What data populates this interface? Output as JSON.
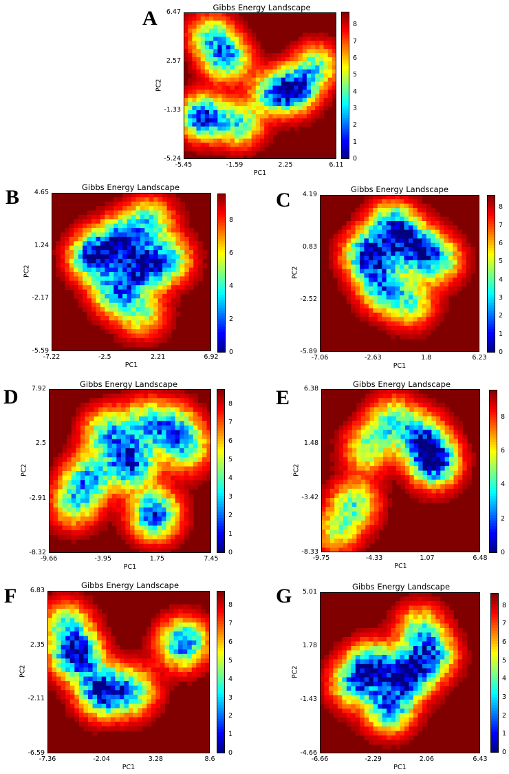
{
  "chart_data": [
    {
      "id": "A",
      "type": "heatmap",
      "title": "Gibbs Energy Landscape",
      "xlabel": "PC1",
      "ylabel": "PC2",
      "xticks": [
        "-5.45",
        "-1.59",
        "2.25",
        "6.11"
      ],
      "yticks": [
        "6.47",
        "2.57",
        "-1.33",
        "-5.24"
      ],
      "xlim": [
        -5.45,
        6.11
      ],
      "ylim": [
        -5.24,
        6.47
      ],
      "colorbar_ticks": [
        "0",
        "1",
        "2",
        "3",
        "4",
        "5",
        "6",
        "7",
        "8"
      ],
      "colorbar_max": 8.8,
      "colormap": "jet",
      "basins": [
        {
          "x": -4.0,
          "y": -1.9,
          "depth": 0.95
        },
        {
          "x": -2.2,
          "y": 2.8,
          "depth": 0.75
        },
        {
          "x": -3.4,
          "y": 4.6,
          "depth": 0.55
        },
        {
          "x": 3.0,
          "y": 0.3,
          "depth": 0.85
        },
        {
          "x": 1.3,
          "y": 0.0,
          "depth": 0.6
        },
        {
          "x": -1.2,
          "y": -2.5,
          "depth": 0.6
        },
        {
          "x": 4.6,
          "y": 2.2,
          "depth": 0.55
        }
      ]
    },
    {
      "id": "B",
      "type": "heatmap",
      "title": "Gibbs Energy Landscape",
      "xlabel": "PC1",
      "ylabel": "PC2",
      "xticks": [
        "-7.22",
        "-2.5",
        "2.21",
        "6.92"
      ],
      "yticks": [
        "4.65",
        "1.24",
        "-2.17",
        "-5.59"
      ],
      "xlim": [
        -7.22,
        6.92
      ],
      "ylim": [
        -5.59,
        4.65
      ],
      "colorbar_ticks": [
        "0",
        "2",
        "4",
        "6",
        "8"
      ],
      "colorbar_max": 9.6,
      "colormap": "jet",
      "basins": [
        {
          "x": -3.5,
          "y": 0.5,
          "depth": 0.95
        },
        {
          "x": -1.0,
          "y": 1.6,
          "depth": 0.8
        },
        {
          "x": 0.8,
          "y": -0.2,
          "depth": 0.8
        },
        {
          "x": -1.5,
          "y": -1.8,
          "depth": 0.7
        },
        {
          "x": 3.2,
          "y": 0.3,
          "depth": 0.6
        },
        {
          "x": 1.5,
          "y": 2.8,
          "depth": 0.55
        },
        {
          "x": 0.8,
          "y": -3.2,
          "depth": 0.45
        }
      ]
    },
    {
      "id": "C",
      "type": "heatmap",
      "title": "Gibbs Energy Landscape",
      "xlabel": "PC1",
      "ylabel": "PC2",
      "xticks": [
        "-7.06",
        "-2.63",
        "1.8",
        "6.23"
      ],
      "yticks": [
        "4.19",
        "0.83",
        "-2.52",
        "-5.89"
      ],
      "xlim": [
        -7.06,
        6.23
      ],
      "ylim": [
        -5.89,
        4.19
      ],
      "colorbar_ticks": [
        "0",
        "1",
        "2",
        "3",
        "4",
        "5",
        "6",
        "7",
        "8"
      ],
      "colorbar_max": 8.7,
      "colormap": "jet",
      "basins": [
        {
          "x": -3.0,
          "y": 0.3,
          "depth": 1.0
        },
        {
          "x": -1.0,
          "y": 2.2,
          "depth": 0.8
        },
        {
          "x": 0.8,
          "y": 0.8,
          "depth": 0.8
        },
        {
          "x": -1.8,
          "y": -1.8,
          "depth": 0.7
        },
        {
          "x": 2.8,
          "y": 0.0,
          "depth": 0.6
        },
        {
          "x": 0.5,
          "y": -2.8,
          "depth": 0.5
        }
      ]
    },
    {
      "id": "D",
      "type": "heatmap",
      "title": "Gibbs Energy Landscape",
      "xlabel": "PC1",
      "ylabel": "PC2",
      "xticks": [
        "-9.66",
        "-3.95",
        "1.75",
        "7.45"
      ],
      "yticks": [
        "7.92",
        "2.5",
        "-2.91",
        "-8.32"
      ],
      "xlim": [
        -9.66,
        7.45
      ],
      "ylim": [
        -8.32,
        7.92
      ],
      "colorbar_ticks": [
        "0",
        "1",
        "2",
        "3",
        "4",
        "5",
        "6",
        "7",
        "8"
      ],
      "colorbar_max": 8.8,
      "colormap": "jet",
      "basins": [
        {
          "x": -1.0,
          "y": 0.5,
          "depth": 0.9
        },
        {
          "x": 1.5,
          "y": -4.5,
          "depth": 0.9
        },
        {
          "x": -5.5,
          "y": -1.0,
          "depth": 0.65
        },
        {
          "x": -3.5,
          "y": 3.5,
          "depth": 0.65
        },
        {
          "x": 3.5,
          "y": 4.0,
          "depth": 0.6
        },
        {
          "x": 5.0,
          "y": 2.0,
          "depth": 0.5
        },
        {
          "x": -7.0,
          "y": -3.5,
          "depth": 0.5
        },
        {
          "x": 0.5,
          "y": 4.5,
          "depth": 0.55
        }
      ]
    },
    {
      "id": "E",
      "type": "heatmap",
      "title": "Gibbs Energy Landscape",
      "xlabel": "PC1",
      "ylabel": "PC2",
      "xticks": [
        "-9.75",
        "-4.33",
        "1.07",
        "6.48"
      ],
      "yticks": [
        "6.38",
        "1.48",
        "-3.42",
        "-8.33"
      ],
      "xlim": [
        -9.75,
        6.48
      ],
      "ylim": [
        -8.33,
        6.38
      ],
      "colorbar_ticks": [
        "0",
        "2",
        "4",
        "6",
        "8"
      ],
      "colorbar_max": 9.6,
      "colormap": "jet",
      "basins": [
        {
          "x": 1.8,
          "y": -0.2,
          "depth": 1.0
        },
        {
          "x": 0.5,
          "y": 2.0,
          "depth": 0.7
        },
        {
          "x": -2.5,
          "y": 3.5,
          "depth": 0.55
        },
        {
          "x": -5.0,
          "y": 1.0,
          "depth": 0.5
        },
        {
          "x": -6.3,
          "y": -4.0,
          "depth": 0.55
        },
        {
          "x": -8.2,
          "y": -6.5,
          "depth": 0.4
        }
      ]
    },
    {
      "id": "F",
      "type": "heatmap",
      "title": "Gibbs Energy Landscape",
      "xlabel": "PC1",
      "ylabel": "PC2",
      "xticks": [
        "-7.36",
        "-2.04",
        "3.28",
        "8.6"
      ],
      "yticks": [
        "6.83",
        "2.35",
        "-2.11",
        "-6.59"
      ],
      "xlim": [
        -7.36,
        8.6
      ],
      "ylim": [
        -6.59,
        6.83
      ],
      "colorbar_ticks": [
        "0",
        "1",
        "2",
        "3",
        "4",
        "5",
        "6",
        "7",
        "8"
      ],
      "colorbar_max": 8.8,
      "colormap": "jet",
      "basins": [
        {
          "x": -4.5,
          "y": 1.5,
          "depth": 1.0
        },
        {
          "x": -2.0,
          "y": -1.5,
          "depth": 0.95
        },
        {
          "x": 6.0,
          "y": 2.5,
          "depth": 0.85
        },
        {
          "x": 1.0,
          "y": -1.5,
          "depth": 0.6
        },
        {
          "x": -5.5,
          "y": 4.0,
          "depth": 0.55
        }
      ]
    },
    {
      "id": "G",
      "type": "heatmap",
      "title": "Gibbs Energy Landscape",
      "xlabel": "PC1",
      "ylabel": "PC2",
      "xticks": [
        "-6.66",
        "-2.29",
        "2.06",
        "6.43"
      ],
      "yticks": [
        "5.01",
        "1.78",
        "-1.43",
        "-4.66"
      ],
      "xlim": [
        -6.66,
        6.43
      ],
      "ylim": [
        -4.66,
        5.01
      ],
      "colorbar_ticks": [
        "0",
        "1",
        "2",
        "3",
        "4",
        "5",
        "6",
        "7",
        "8"
      ],
      "colorbar_max": 8.7,
      "colormap": "jet",
      "basins": [
        {
          "x": 0.5,
          "y": 0.0,
          "depth": 1.0
        },
        {
          "x": -2.5,
          "y": 0.5,
          "depth": 0.85
        },
        {
          "x": -1.0,
          "y": -2.0,
          "depth": 0.75
        },
        {
          "x": 2.5,
          "y": 1.2,
          "depth": 0.7
        },
        {
          "x": -4.0,
          "y": -0.5,
          "depth": 0.55
        },
        {
          "x": 1.5,
          "y": 2.8,
          "depth": 0.5
        }
      ]
    }
  ]
}
